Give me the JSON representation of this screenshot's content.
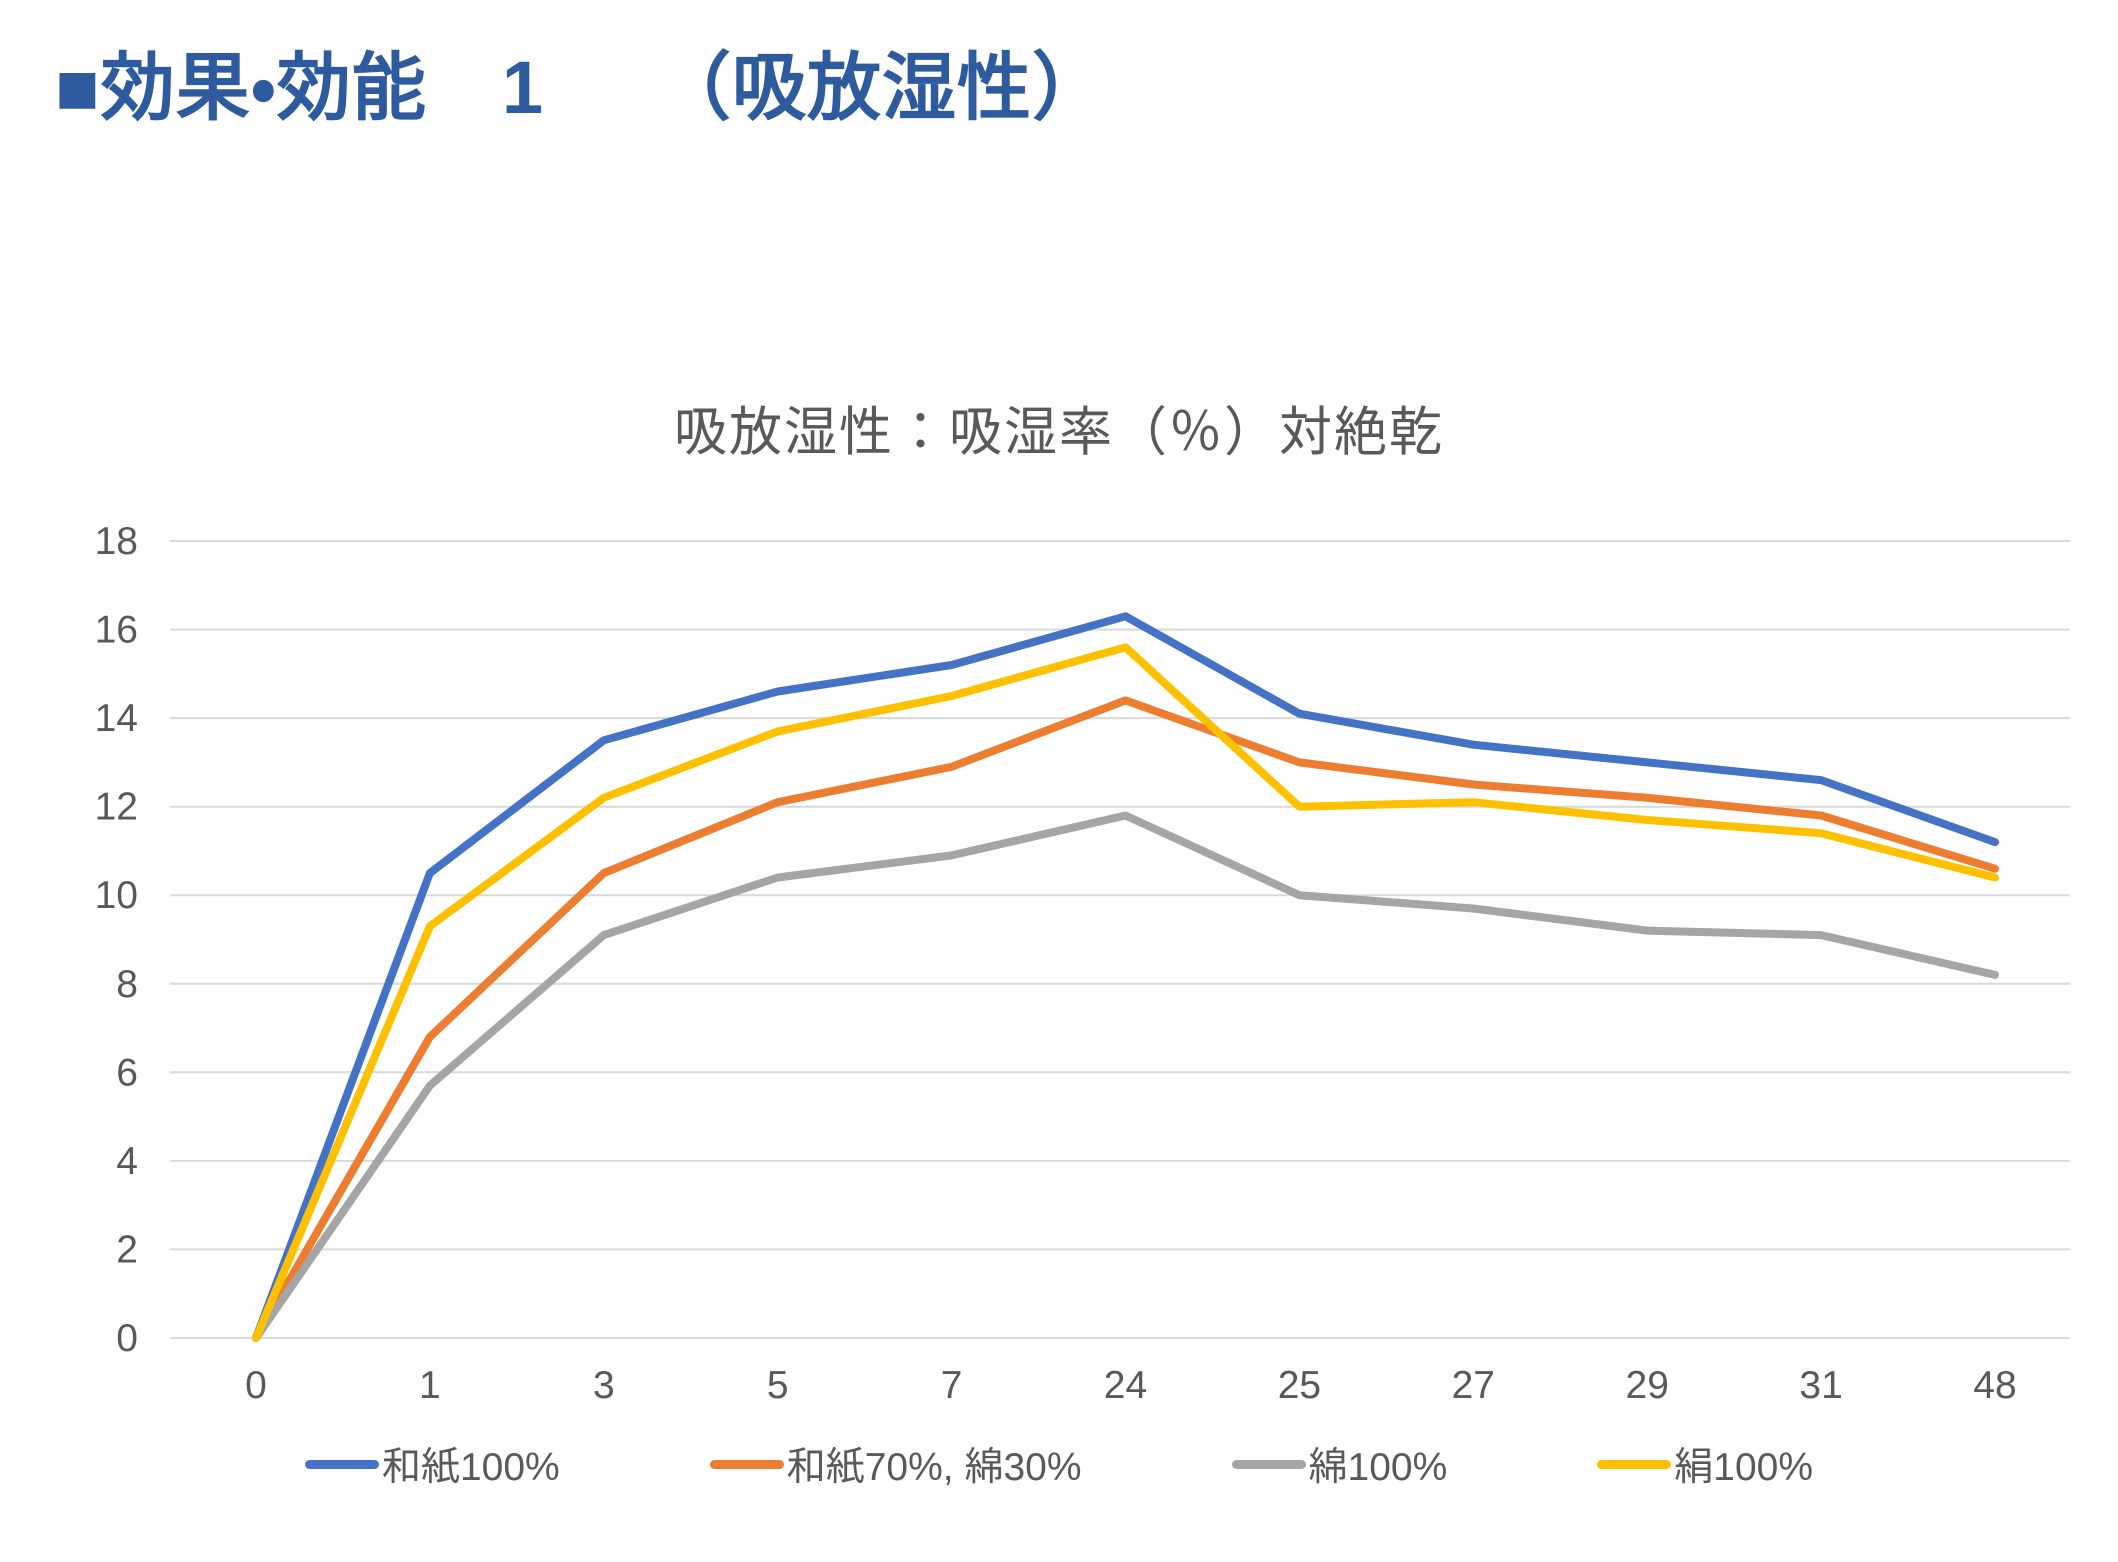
{
  "page": {
    "title": "■効果・効能　1　　（吸放湿性）"
  },
  "colors": {
    "page_title": "#2E5A9E",
    "axis_text": "#595959",
    "grid": "#D9D9D9",
    "background": "#FFFFFF"
  },
  "chart_data": {
    "type": "line",
    "title": "吸放湿性：吸湿率（％）対絶乾",
    "categories": [
      "0",
      "1",
      "3",
      "5",
      "7",
      "24",
      "25",
      "27",
      "29",
      "31",
      "48"
    ],
    "series": [
      {
        "name": "和紙100%",
        "color": "#4472C4",
        "values": [
          0,
          10.5,
          13.5,
          14.6,
          15.2,
          16.3,
          14.1,
          13.4,
          13.0,
          12.6,
          11.2
        ]
      },
      {
        "name": "和紙70%, 綿30%",
        "color": "#ED7D31",
        "values": [
          0,
          6.8,
          10.5,
          12.1,
          12.9,
          14.4,
          13.0,
          12.5,
          12.2,
          11.8,
          10.6
        ]
      },
      {
        "name": "綿100%",
        "color": "#A5A5A5",
        "values": [
          0,
          5.7,
          9.1,
          10.4,
          10.9,
          11.8,
          10.0,
          9.7,
          9.2,
          9.1,
          8.2
        ]
      },
      {
        "name": "絹100%",
        "color": "#FFC000",
        "values": [
          0,
          9.3,
          12.2,
          13.7,
          14.5,
          15.6,
          12.0,
          12.1,
          11.7,
          11.4,
          10.4
        ]
      }
    ],
    "ylim": [
      0,
      18
    ],
    "ytick_step": 2,
    "grid": true,
    "legend_position": "bottom"
  }
}
